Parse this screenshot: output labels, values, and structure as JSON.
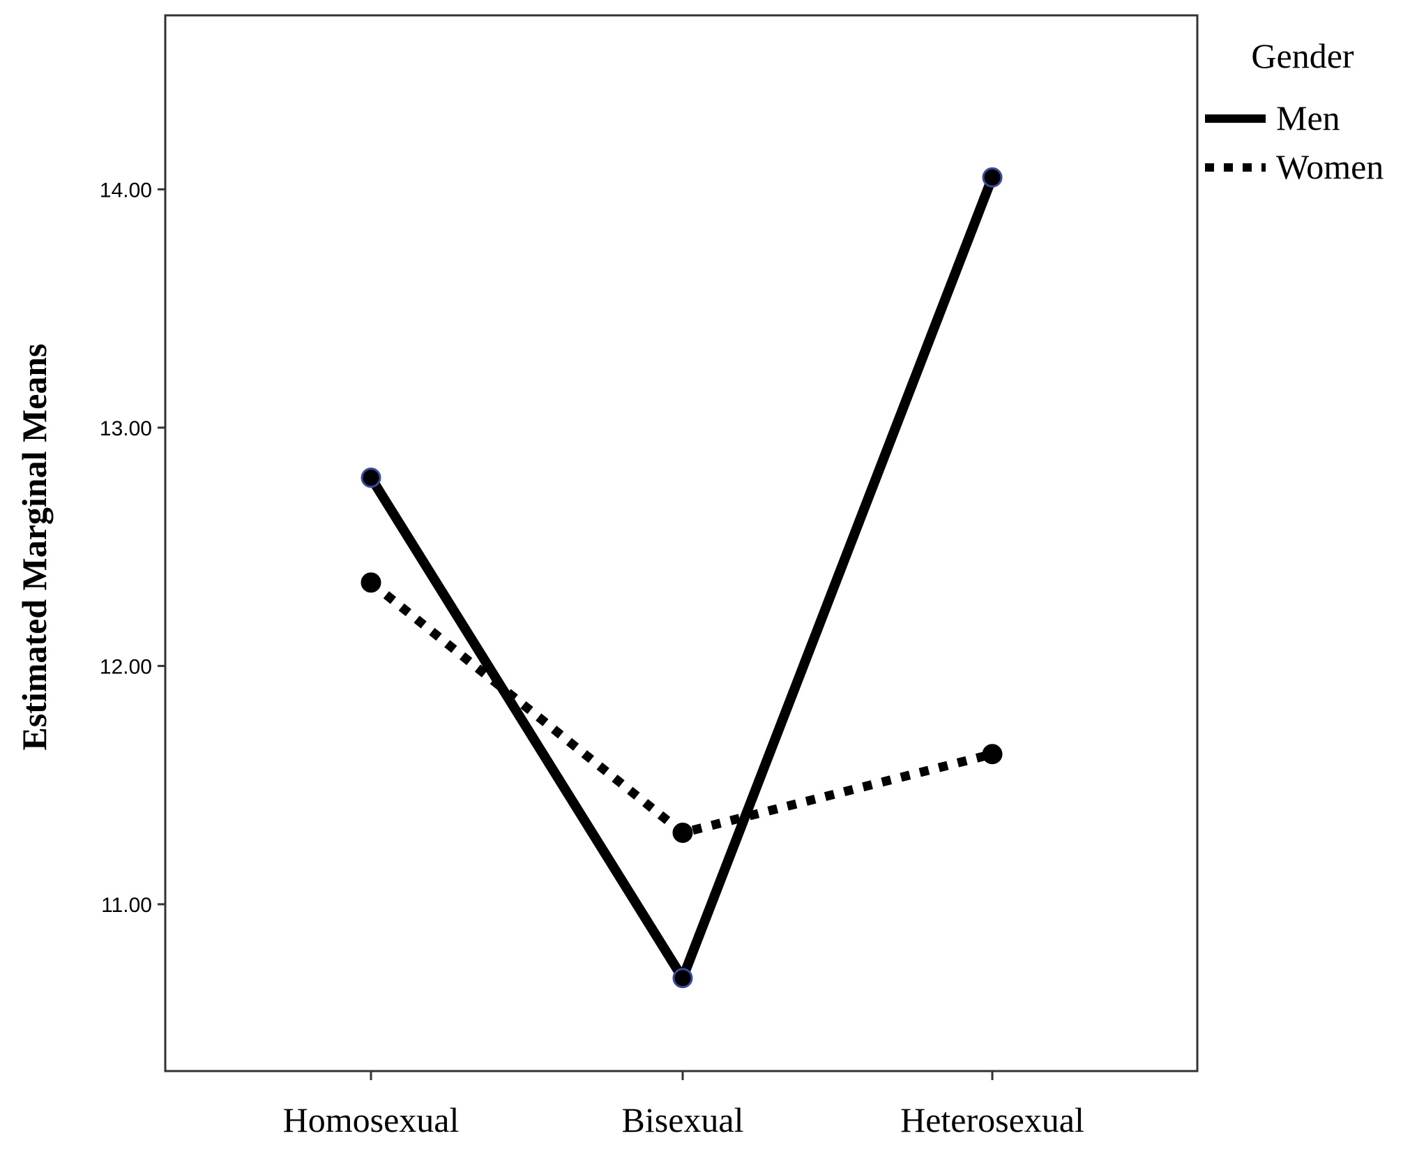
{
  "chart_data": {
    "type": "line",
    "categories": [
      "Homosexual",
      "Bisexual",
      "Heterosexual"
    ],
    "series": [
      {
        "name": "Men",
        "values": [
          12.79,
          10.69,
          14.05
        ],
        "style": "solid",
        "marker_edge": "#3b4a9e"
      },
      {
        "name": "Women",
        "values": [
          12.35,
          11.3,
          11.63
        ],
        "style": "dotted",
        "marker_edge": "#000000"
      }
    ],
    "ylabel": "Estimated Marginal Means",
    "xlabel": "",
    "yticks": [
      "11.00",
      "12.00",
      "13.00",
      "14.00"
    ],
    "ytick_values": [
      11,
      12,
      13,
      14
    ],
    "ylim": [
      10.3,
      14.73
    ],
    "grid": false,
    "legend": {
      "title": "Gender",
      "placement": "top-right outside"
    }
  }
}
